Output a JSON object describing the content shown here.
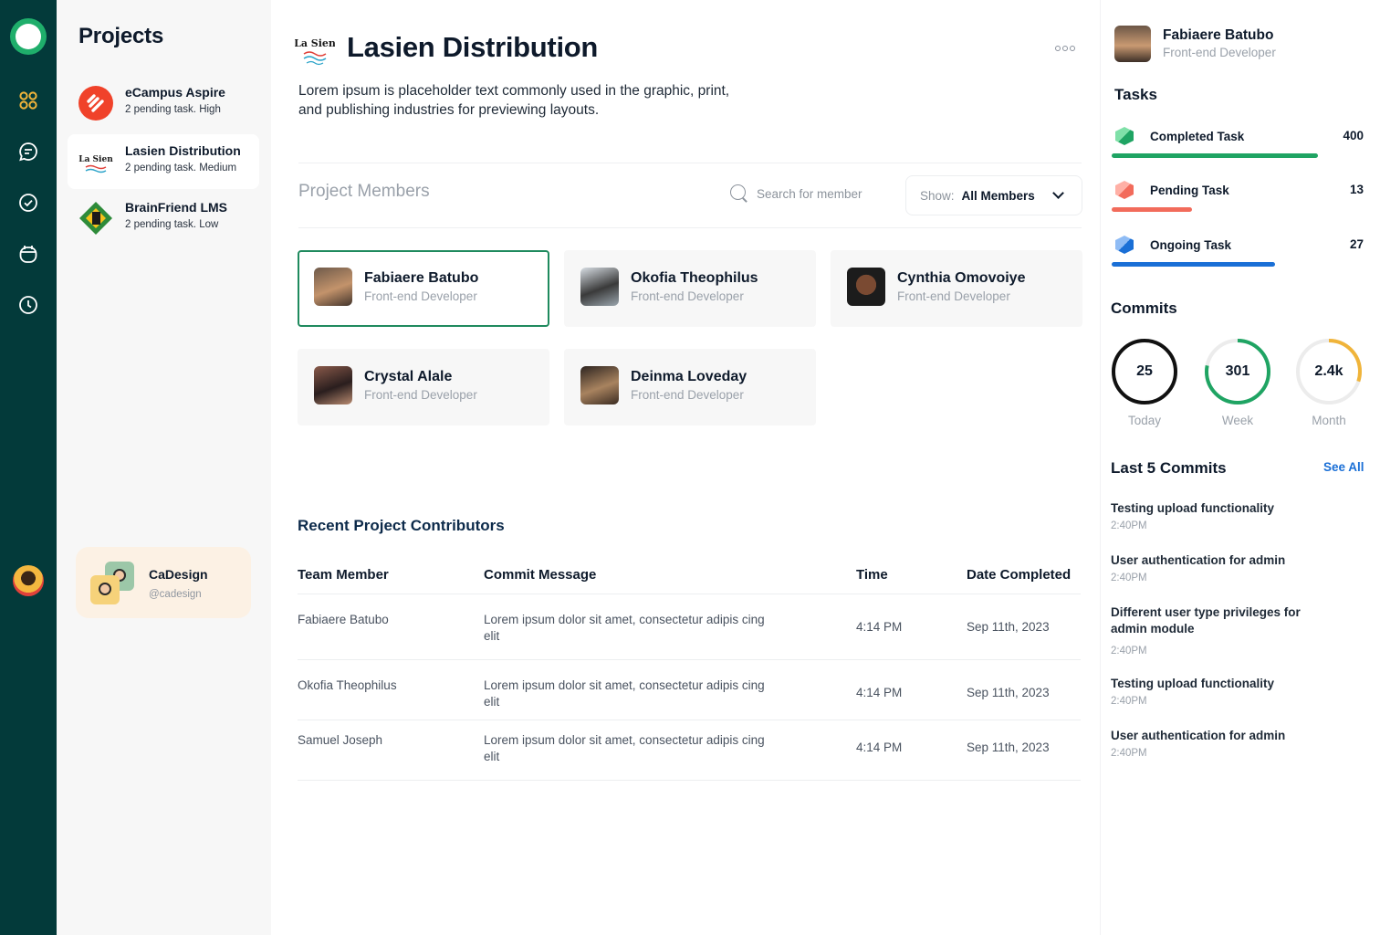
{
  "colors": {
    "rail_bg": "#033a3a",
    "accent_green": "#1f8a5e",
    "completed": "#1fa463",
    "pending": "#f26b5b",
    "ongoing": "#1a6fd6",
    "month_arc": "#f0b43a"
  },
  "nav": {
    "icons": [
      "grid-icon",
      "chat-icon",
      "check-circle-icon",
      "calendar-icon",
      "clock-icon"
    ]
  },
  "projects": {
    "title": "Projects",
    "items": [
      {
        "name": "eCampus Aspire",
        "meta": "2 pending task. High"
      },
      {
        "name": "Lasien Distribution",
        "meta": "2 pending task. Medium"
      },
      {
        "name": "BrainFriend LMS",
        "meta": "2 pending task. Low"
      }
    ],
    "profile": {
      "name": "CaDesign",
      "handle": "@cadesign"
    }
  },
  "main": {
    "logo_text": "La Sien",
    "title": "Lasien Distribution",
    "description": "Lorem ipsum is placeholder text commonly used in the graphic, print, and publishing industries for previewing layouts.",
    "members_title": "Project Members",
    "search_placeholder": "Search for member",
    "show_label": "Show:",
    "show_value": "All Members",
    "members": [
      {
        "name": "Fabiaere Batubo",
        "role": "Front-end Developer"
      },
      {
        "name": "Okofia Theophilus",
        "role": "Front-end Developer"
      },
      {
        "name": "Cynthia Omovoiye",
        "role": "Front-end Developer"
      },
      {
        "name": "Crystal Alale",
        "role": "Front-end Developer"
      },
      {
        "name": "Deinma Loveday",
        "role": "Front-end Developer"
      }
    ],
    "contributors_title": "Recent Project Contributors",
    "table": {
      "headers": [
        "Team Member",
        "Commit Message",
        "Time",
        "Date Completed"
      ],
      "rows": [
        {
          "member": "Fabiaere Batubo",
          "message": "Lorem ipsum dolor sit amet, consectetur adipis cing elit",
          "time": "4:14 PM",
          "date": "Sep 11th, 2023"
        },
        {
          "member": "Okofia Theophilus",
          "message": "Lorem ipsum dolor sit amet, consectetur adipis cing elit",
          "time": "4:14 PM",
          "date": "Sep 11th, 2023"
        },
        {
          "member": "Samuel Joseph",
          "message": "Lorem ipsum dolor sit amet, consectetur adipis cing elit",
          "time": "4:14 PM",
          "date": "Sep 11th, 2023"
        }
      ]
    }
  },
  "right": {
    "user": {
      "name": "Fabiaere Batubo",
      "role": "Front-end Developer"
    },
    "tasks_title": "Tasks",
    "tasks": [
      {
        "label": "Completed Task",
        "value": "400",
        "fill": 0.82
      },
      {
        "label": "Pending Task",
        "value": "13",
        "fill": 0.32
      },
      {
        "label": "Ongoing Task",
        "value": "27",
        "fill": 0.65
      }
    ],
    "commits_title": "Commits",
    "commits": [
      {
        "value": "25",
        "label": "Today",
        "progress": 1.0
      },
      {
        "value": "301",
        "label": "Week",
        "progress": 0.78
      },
      {
        "value": "2.4k",
        "label": "Month",
        "progress": 0.3
      }
    ],
    "last_commits_title": "Last 5 Commits",
    "see_all": "See All",
    "last_commits": [
      {
        "message": "Testing upload functionality",
        "time": "2:40PM"
      },
      {
        "message": "User authentication for admin",
        "time": "2:40PM"
      },
      {
        "message": "Different user type privileges for admin module",
        "time": "2:40PM"
      },
      {
        "message": "Testing upload functionality",
        "time": "2:40PM"
      },
      {
        "message": "User authentication for admin",
        "time": "2:40PM"
      }
    ]
  }
}
